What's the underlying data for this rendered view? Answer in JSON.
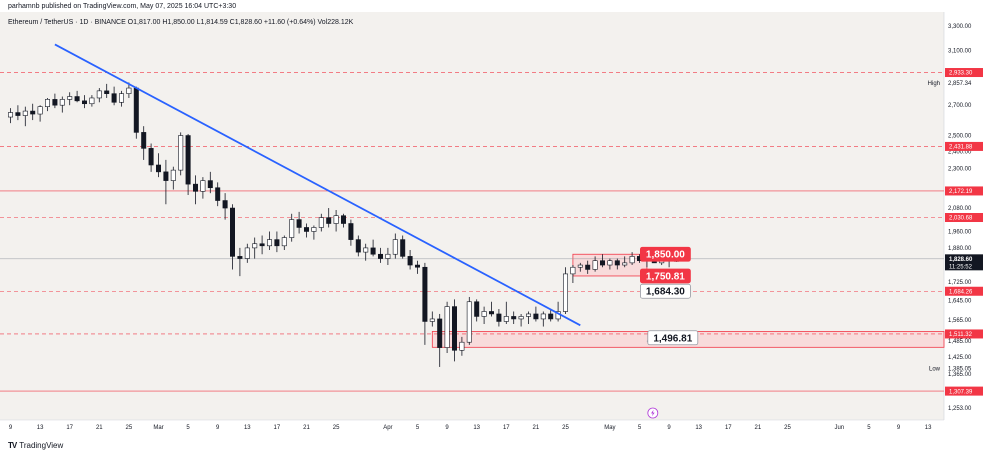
{
  "header": {
    "published": "parhamnb published on TradingView.com, May 07, 2025 16:04 UTC+3:30",
    "symbol_line": "Ethereum / TetherUS · 1D · BINANCE  O1,817.00  H1,850.00  L1,814.59  C1,828.60  +11.60 (+0.64%)  Vol228.12K"
  },
  "footer": {
    "logo_text": "TradingView"
  },
  "colors": {
    "up": "#ffffff",
    "down": "#131722",
    "trendline": "#2962ff",
    "level": "#f23645",
    "zone_fill": "#f8d7d7",
    "bg": "#f3f1ee",
    "price_tag": "#131722"
  },
  "chart_data": {
    "type": "candlestick",
    "symbol": "Ethereum / TetherUS",
    "interval": "1D",
    "exchange": "BINANCE",
    "ohlc_header": {
      "open": 1817.0,
      "high": 1850.0,
      "low": 1814.59,
      "close": 1828.6,
      "change": "+11.60 (+0.64%)",
      "volume": "228.12K"
    },
    "x_ticks": [
      {
        "i": 0,
        "label": "9"
      },
      {
        "i": 4,
        "label": "13"
      },
      {
        "i": 8,
        "label": "17"
      },
      {
        "i": 12,
        "label": "21"
      },
      {
        "i": 16,
        "label": "25"
      },
      {
        "i": 20,
        "label": "Mar"
      },
      {
        "i": 24,
        "label": "5"
      },
      {
        "i": 28,
        "label": "9"
      },
      {
        "i": 32,
        "label": "13"
      },
      {
        "i": 36,
        "label": "17"
      },
      {
        "i": 40,
        "label": "21"
      },
      {
        "i": 44,
        "label": "25"
      },
      {
        "i": 51,
        "label": "Apr"
      },
      {
        "i": 55,
        "label": "5"
      },
      {
        "i": 59,
        "label": "9"
      },
      {
        "i": 63,
        "label": "13"
      },
      {
        "i": 67,
        "label": "17"
      },
      {
        "i": 71,
        "label": "21"
      },
      {
        "i": 75,
        "label": "25"
      },
      {
        "i": 81,
        "label": "May"
      },
      {
        "i": 85,
        "label": "5"
      },
      {
        "i": 89,
        "label": "9"
      },
      {
        "i": 93,
        "label": "13"
      },
      {
        "i": 97,
        "label": "17"
      },
      {
        "i": 101,
        "label": "21"
      },
      {
        "i": 105,
        "label": "25"
      },
      {
        "i": 112,
        "label": "Jun"
      },
      {
        "i": 116,
        "label": "5"
      },
      {
        "i": 120,
        "label": "9"
      },
      {
        "i": 124,
        "label": "13"
      }
    ],
    "y_scale": "log",
    "y_range": [
      1215,
      3420
    ],
    "y_ticks": [
      "3,300.00",
      "3,100.00",
      "2,857.34",
      "2,700.00",
      "2,500.00",
      "2,400.00",
      "2,300.00",
      "2,080.00",
      "1,960.00",
      "1,880.00",
      "1,725.00",
      "1,645.00",
      "1,565.00",
      "1,485.00",
      "1,425.00",
      "1,365.00",
      "1,253.00"
    ],
    "y_tick_values": [
      3300,
      3100,
      2857.34,
      2700,
      2500,
      2400,
      2300,
      2080,
      1960,
      1880,
      1725,
      1645,
      1565,
      1485,
      1425,
      1365,
      1253
    ],
    "price_tags": [
      {
        "value": 2933.3,
        "label": "2,933.30",
        "kind": "level"
      },
      {
        "value": 2431.88,
        "label": "2,431.88",
        "kind": "level"
      },
      {
        "value": 2172.19,
        "label": "2,172.19",
        "kind": "level"
      },
      {
        "value": 2030.68,
        "label": "2,030.68",
        "kind": "level"
      },
      {
        "value": 1828.6,
        "label": "1,828.60",
        "kind": "last",
        "sub": "11:25:52"
      },
      {
        "value": 1684.26,
        "label": "1,684.26",
        "kind": "level"
      },
      {
        "value": 1511.32,
        "label": "1,511.32",
        "kind": "level"
      },
      {
        "value": 1307.39,
        "label": "1,307.39",
        "kind": "level"
      }
    ],
    "side_labels": [
      {
        "value": 2857.34,
        "text": "High"
      },
      {
        "value": 1385.05,
        "text": "Low"
      }
    ],
    "low_value_label": "1,385.05",
    "horizontal_levels": [
      {
        "value": 2933.3,
        "style": "dashed"
      },
      {
        "value": 2431.88,
        "style": "dashed"
      },
      {
        "value": 2172.19,
        "style": "solid"
      },
      {
        "value": 2030.68,
        "style": "dashed"
      },
      {
        "value": 1684.26,
        "style": "dashed"
      },
      {
        "value": 1511.32,
        "style": "dashed"
      },
      {
        "value": 1307.39,
        "style": "solid"
      }
    ],
    "last_price_line": 1828.6,
    "zones": [
      {
        "i_from": 57,
        "i_to": 200,
        "y_from": 1461,
        "y_to": 1521
      },
      {
        "i_from": 76,
        "i_to": 86,
        "y_from": 1750.81,
        "y_to": 1850.0
      }
    ],
    "trendline": {
      "from": {
        "i": 6,
        "value": 3150
      },
      "to": {
        "i": 77,
        "value": 1545
      }
    },
    "callouts": [
      {
        "text": "1,850.00",
        "value": 1850.0,
        "i": 88.5,
        "style": "filled",
        "anchor_i": 86,
        "anchor_value": 1850.0
      },
      {
        "text": "1,750.81",
        "value": 1750.81,
        "i": 88.5,
        "style": "filled",
        "anchor_i": 86,
        "anchor_value": 1750.81
      },
      {
        "text": "1,684.30",
        "value": 1684.3,
        "i": 88.5,
        "style": "outline",
        "anchor_i": 86,
        "anchor_value": 1655
      },
      {
        "text": "1,496.81",
        "value": 1496.81,
        "i": 89.5,
        "style": "outline",
        "anchor_i": 86,
        "anchor_value": 1485
      }
    ],
    "ohlc": [
      [
        2620,
        2680,
        2580,
        2650
      ],
      [
        2650,
        2700,
        2600,
        2630
      ],
      [
        2630,
        2690,
        2560,
        2660
      ],
      [
        2660,
        2710,
        2600,
        2640
      ],
      [
        2640,
        2700,
        2590,
        2690
      ],
      [
        2690,
        2750,
        2660,
        2740
      ],
      [
        2740,
        2780,
        2680,
        2700
      ],
      [
        2700,
        2760,
        2650,
        2740
      ],
      [
        2740,
        2790,
        2700,
        2760
      ],
      [
        2760,
        2800,
        2720,
        2730
      ],
      [
        2730,
        2770,
        2680,
        2710
      ],
      [
        2710,
        2770,
        2690,
        2750
      ],
      [
        2750,
        2820,
        2720,
        2800
      ],
      [
        2800,
        2850,
        2750,
        2780
      ],
      [
        2780,
        2830,
        2700,
        2720
      ],
      [
        2720,
        2800,
        2690,
        2780
      ],
      [
        2780,
        2860,
        2750,
        2820
      ],
      [
        2820,
        2830,
        2480,
        2520
      ],
      [
        2520,
        2560,
        2350,
        2420
      ],
      [
        2420,
        2450,
        2280,
        2320
      ],
      [
        2320,
        2390,
        2250,
        2280
      ],
      [
        2280,
        2350,
        2100,
        2230
      ],
      [
        2230,
        2310,
        2180,
        2290
      ],
      [
        2290,
        2520,
        2260,
        2500
      ],
      [
        2500,
        2510,
        2150,
        2210
      ],
      [
        2210,
        2260,
        2100,
        2170
      ],
      [
        2170,
        2250,
        2130,
        2230
      ],
      [
        2230,
        2280,
        2160,
        2190
      ],
      [
        2190,
        2220,
        2090,
        2120
      ],
      [
        2120,
        2160,
        2020,
        2080
      ],
      [
        2080,
        2100,
        1780,
        1840
      ],
      [
        1840,
        1880,
        1750,
        1830
      ],
      [
        1830,
        1900,
        1810,
        1880
      ],
      [
        1880,
        1930,
        1830,
        1900
      ],
      [
        1900,
        1940,
        1850,
        1890
      ],
      [
        1890,
        1960,
        1870,
        1920
      ],
      [
        1920,
        1960,
        1860,
        1890
      ],
      [
        1890,
        1940,
        1870,
        1930
      ],
      [
        1930,
        2050,
        1910,
        2020
      ],
      [
        2020,
        2060,
        1950,
        1980
      ],
      [
        1980,
        2000,
        1930,
        1960
      ],
      [
        1960,
        1990,
        1920,
        1980
      ],
      [
        1980,
        2050,
        1960,
        2030
      ],
      [
        2030,
        2080,
        1980,
        2000
      ],
      [
        2000,
        2070,
        1960,
        2040
      ],
      [
        2040,
        2050,
        1980,
        2000
      ],
      [
        2000,
        2020,
        1890,
        1920
      ],
      [
        1920,
        1940,
        1840,
        1860
      ],
      [
        1860,
        1900,
        1820,
        1880
      ],
      [
        1880,
        1920,
        1840,
        1850
      ],
      [
        1850,
        1880,
        1810,
        1830
      ],
      [
        1830,
        1880,
        1800,
        1850
      ],
      [
        1850,
        1950,
        1830,
        1920
      ],
      [
        1920,
        1940,
        1830,
        1840
      ],
      [
        1840,
        1870,
        1780,
        1800
      ],
      [
        1800,
        1820,
        1760,
        1790
      ],
      [
        1790,
        1810,
        1470,
        1560
      ],
      [
        1560,
        1600,
        1540,
        1570
      ],
      [
        1570,
        1590,
        1390,
        1460
      ],
      [
        1460,
        1640,
        1440,
        1620
      ],
      [
        1620,
        1650,
        1410,
        1450
      ],
      [
        1450,
        1500,
        1430,
        1480
      ],
      [
        1480,
        1660,
        1470,
        1640
      ],
      [
        1640,
        1650,
        1560,
        1580
      ],
      [
        1580,
        1620,
        1550,
        1600
      ],
      [
        1600,
        1640,
        1580,
        1590
      ],
      [
        1590,
        1610,
        1540,
        1560
      ],
      [
        1560,
        1640,
        1550,
        1580
      ],
      [
        1580,
        1600,
        1550,
        1570
      ],
      [
        1570,
        1590,
        1540,
        1580
      ],
      [
        1580,
        1600,
        1550,
        1590
      ],
      [
        1590,
        1620,
        1560,
        1570
      ],
      [
        1570,
        1600,
        1540,
        1590
      ],
      [
        1590,
        1610,
        1560,
        1570
      ],
      [
        1570,
        1640,
        1560,
        1600
      ],
      [
        1600,
        1790,
        1590,
        1760
      ],
      [
        1760,
        1800,
        1720,
        1790
      ],
      [
        1790,
        1810,
        1770,
        1800
      ],
      [
        1800,
        1820,
        1760,
        1780
      ],
      [
        1780,
        1840,
        1770,
        1820
      ],
      [
        1820,
        1850,
        1790,
        1800
      ],
      [
        1800,
        1830,
        1780,
        1820
      ],
      [
        1820,
        1830,
        1780,
        1800
      ],
      [
        1800,
        1840,
        1790,
        1810
      ],
      [
        1810,
        1860,
        1800,
        1840
      ],
      [
        1840,
        1850,
        1810,
        1820
      ],
      [
        1820,
        1840,
        1790,
        1830
      ],
      [
        1830,
        1850,
        1810,
        1810
      ],
      [
        1810,
        1840,
        1800,
        1830
      ],
      [
        1830,
        1840,
        1790,
        1820
      ],
      [
        1817,
        1850,
        1814.59,
        1828.6
      ]
    ],
    "grid": false,
    "event_icon": "lightning-icon"
  }
}
